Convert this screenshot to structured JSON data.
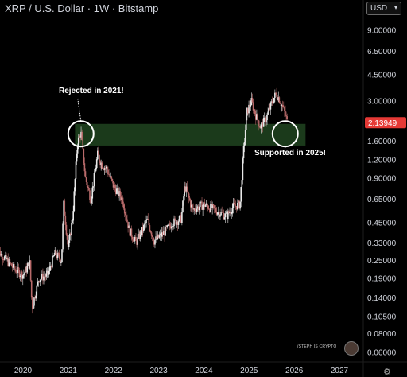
{
  "header": {
    "title": "XRP / U.S. Dollar · 1W · Bitstamp",
    "currency": "USD"
  },
  "annotations": {
    "rejected": "Rejected in 2021!",
    "supported": "Supported in 2025!"
  },
  "watermark": "/STEPH IS CRYPTO",
  "colors": {
    "background": "#000000",
    "up": "#e8e8e8",
    "down": "#b86a6a",
    "zone": "#1b3a1b",
    "price_badge": "#e53935"
  },
  "chart_data": {
    "type": "candlestick",
    "title": "XRP / U.S. Dollar · 1W · Bitstamp",
    "y_scale": "log",
    "ylim": [
      0.055,
      11
    ],
    "x_tick_labels": [
      "2020",
      "2021",
      "2022",
      "2023",
      "2024",
      "2025",
      "2026",
      "2027"
    ],
    "y_tick_labels": [
      "9.00000",
      "6.50000",
      "4.50000",
      "3.00000",
      "1.60000",
      "1.20000",
      "0.90000",
      "0.65000",
      "0.45000",
      "0.33000",
      "0.25000",
      "0.19000",
      "0.14000",
      "0.10500",
      "0.08000",
      "0.06000"
    ],
    "y_tick_values": [
      9.0,
      6.5,
      4.5,
      3.0,
      1.6,
      1.2,
      0.9,
      0.65,
      0.45,
      0.33,
      0.25,
      0.19,
      0.14,
      0.105,
      0.08,
      0.06
    ],
    "last_price": "2.13949",
    "last_price_value": 2.13949,
    "zone": {
      "low": 1.5,
      "high": 2.1,
      "start": 2021.15,
      "end": 2026.25
    },
    "circles": [
      {
        "label": "Rejected in 2021!",
        "x": 2021.28,
        "y": 1.8
      },
      {
        "label": "Supported in 2025!",
        "x": 2025.8,
        "y": 1.8
      }
    ],
    "price_path": [
      [
        2019.4,
        0.3
      ],
      [
        2019.6,
        0.26
      ],
      [
        2019.8,
        0.22
      ],
      [
        2020.0,
        0.2
      ],
      [
        2020.15,
        0.24
      ],
      [
        2020.2,
        0.12
      ],
      [
        2020.35,
        0.19
      ],
      [
        2020.55,
        0.2
      ],
      [
        2020.7,
        0.28
      ],
      [
        2020.85,
        0.25
      ],
      [
        2020.9,
        0.6
      ],
      [
        2021.0,
        0.3
      ],
      [
        2021.1,
        0.5
      ],
      [
        2021.2,
        1.55
      ],
      [
        2021.28,
        1.85
      ],
      [
        2021.38,
        0.9
      ],
      [
        2021.5,
        0.65
      ],
      [
        2021.65,
        1.3
      ],
      [
        2021.75,
        1.1
      ],
      [
        2021.85,
        1.05
      ],
      [
        2022.0,
        0.8
      ],
      [
        2022.2,
        0.65
      ],
      [
        2022.35,
        0.4
      ],
      [
        2022.5,
        0.33
      ],
      [
        2022.75,
        0.47
      ],
      [
        2022.9,
        0.34
      ],
      [
        2023.1,
        0.38
      ],
      [
        2023.3,
        0.45
      ],
      [
        2023.5,
        0.48
      ],
      [
        2023.58,
        0.8
      ],
      [
        2023.75,
        0.55
      ],
      [
        2024.0,
        0.6
      ],
      [
        2024.25,
        0.55
      ],
      [
        2024.5,
        0.5
      ],
      [
        2024.65,
        0.58
      ],
      [
        2024.8,
        0.6
      ],
      [
        2024.88,
        1.4
      ],
      [
        2024.95,
        2.5
      ],
      [
        2025.05,
        3.0
      ],
      [
        2025.15,
        2.4
      ],
      [
        2025.25,
        2.0
      ],
      [
        2025.38,
        2.3
      ],
      [
        2025.5,
        2.9
      ],
      [
        2025.6,
        3.4
      ],
      [
        2025.7,
        2.95
      ],
      [
        2025.8,
        2.45
      ],
      [
        2025.85,
        2.14
      ]
    ]
  }
}
